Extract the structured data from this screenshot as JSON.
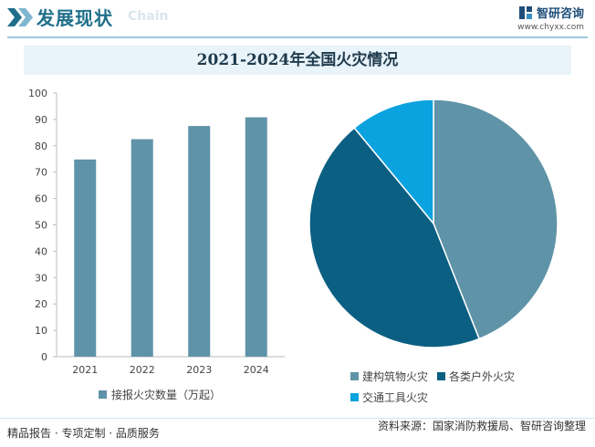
{
  "header": {
    "title": "发展现状",
    "watermark": "Chain",
    "logo_name": "智研咨询",
    "logo_url": "www.chyxx.com"
  },
  "colors": {
    "header_title": "#1f6f8b",
    "bar": "#5f93a8",
    "pie_building": "#5f93a8",
    "pie_outdoor": "#0b5f82",
    "pie_transport": "#0aa2df"
  },
  "icons": [
    "double-chevron-icon",
    "logo-icon"
  ],
  "chart_data": [
    {
      "type": "bar",
      "title": "2021-2024年全国火灾情况",
      "categories": [
        "2021",
        "2022",
        "2023",
        "2024"
      ],
      "series": [
        {
          "name": "接报火灾数量（万起）",
          "values": [
            74.8,
            82.5,
            87.5,
            90.8
          ]
        }
      ],
      "ylim": [
        0,
        100
      ],
      "yticks": [
        0,
        10,
        20,
        30,
        40,
        50,
        60,
        70,
        80,
        90,
        100
      ],
      "grid": false,
      "legend": "bottom"
    },
    {
      "type": "pie",
      "labels": [
        "建构筑物火灾",
        "各类户外火灾",
        "交通工具火灾"
      ],
      "values": [
        44,
        45,
        11
      ],
      "legend": "bottom"
    }
  ],
  "footer": {
    "left": "精品报告 · 专项定制 · 品质服务",
    "source": "资料来源：国家消防救援局、智研咨询整理"
  }
}
